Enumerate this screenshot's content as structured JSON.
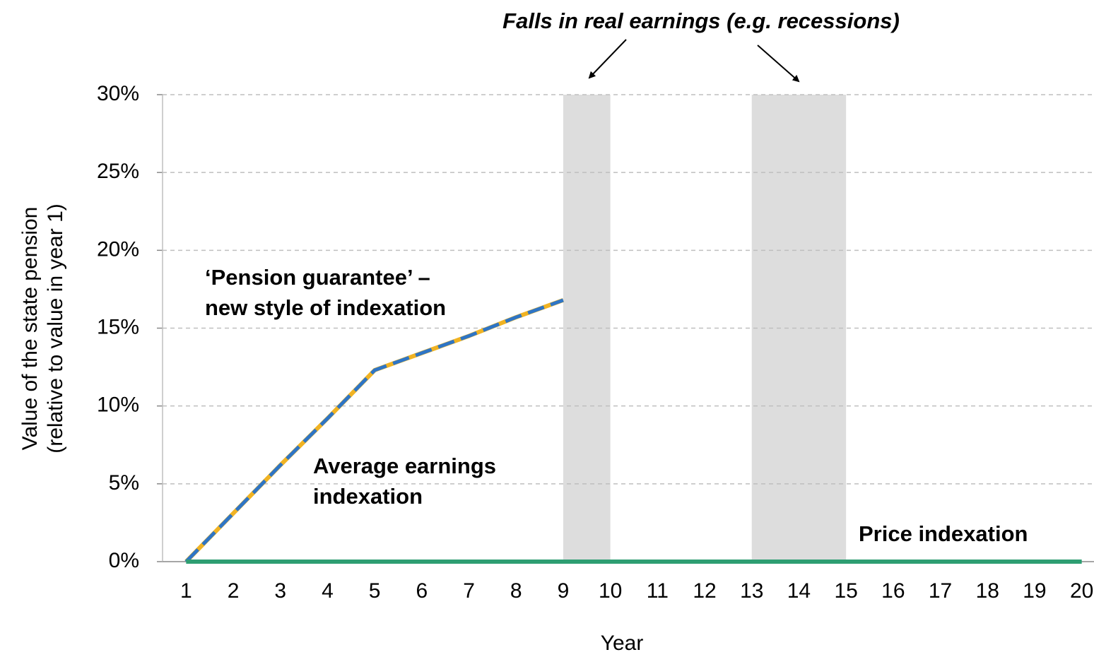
{
  "chart_data": {
    "type": "line",
    "annotation": "Falls in real earnings (e.g. recessions)",
    "ylabel": [
      "Value of the state pension",
      "(relative to value in year 1)"
    ],
    "xlabel": "Year",
    "x": [
      1,
      2,
      3,
      4,
      5,
      6,
      7,
      8,
      9,
      10,
      11,
      12,
      13,
      14,
      15,
      16,
      17,
      18,
      19,
      20
    ],
    "xlim": [
      0.5,
      20.5
    ],
    "xticks": [
      1,
      2,
      3,
      4,
      5,
      6,
      7,
      8,
      9,
      10,
      11,
      12,
      13,
      14,
      15,
      16,
      17,
      18,
      19,
      20
    ],
    "ylim": [
      0,
      30
    ],
    "yticks": [
      {
        "value": 0,
        "label": "0%"
      },
      {
        "value": 5,
        "label": "5%"
      },
      {
        "value": 10,
        "label": "10%"
      },
      {
        "value": 15,
        "label": "15%"
      },
      {
        "value": 20,
        "label": "20%"
      },
      {
        "value": 25,
        "label": "25%"
      },
      {
        "value": 30,
        "label": "30%"
      }
    ],
    "grid": true,
    "shaded_ranges": [
      [
        9,
        10
      ],
      [
        13,
        15
      ]
    ],
    "shade_color": "#dddddd",
    "series": [
      {
        "name": "Average earnings\nindexation",
        "color": "#f0b323",
        "style": "solid",
        "values": [
          0,
          3.1,
          6.2,
          9.2,
          12.3,
          13.4,
          14.5,
          15.7,
          16.8,
          null,
          null,
          null,
          null,
          null,
          null,
          null,
          null,
          null,
          null,
          null
        ]
      },
      {
        "name": "‘Pension guarantee’ –\nnew style of indexation",
        "color": "#2e75c6",
        "style": "dashed",
        "values": [
          0,
          3.1,
          6.2,
          9.2,
          12.3,
          13.4,
          14.5,
          15.7,
          16.8,
          null,
          null,
          null,
          null,
          null,
          null,
          null,
          null,
          null,
          null,
          null
        ]
      },
      {
        "name": "Price indexation",
        "color": "#2e9e72",
        "style": "solid",
        "values": [
          0,
          0,
          0,
          0,
          0,
          0,
          0,
          0,
          0,
          0,
          0,
          0,
          0,
          0,
          0,
          0,
          0,
          0,
          0,
          0
        ]
      }
    ]
  }
}
